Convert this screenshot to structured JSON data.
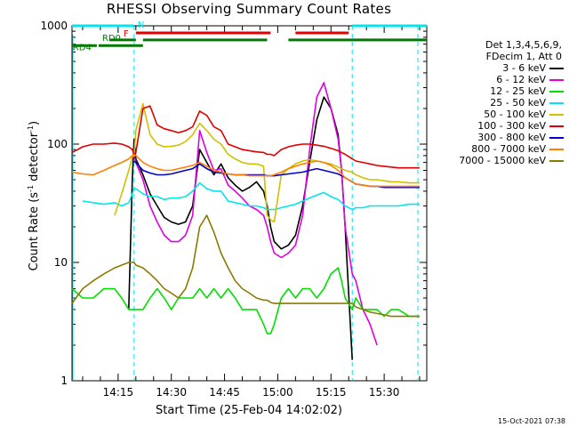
{
  "chart_data": {
    "type": "line",
    "title": "RHESSI Observing Summary Count Rates",
    "xlabel": "Start Time (25-Feb-04 14:02:02)",
    "ylabel_main": "Count Rate (s",
    "ylabel_sup": "-1",
    "ylabel_mid": " detector",
    "ylabel_sup2": "-1",
    "ylabel_end": ")",
    "yscale": "log",
    "ylim": [
      1,
      1000
    ],
    "xlim_minutes": [
      0,
      100
    ],
    "x_ticks": [
      {
        "label": "14:15",
        "minute": 13
      },
      {
        "label": "14:30",
        "minute": 28
      },
      {
        "label": "14:45",
        "minute": 43
      },
      {
        "label": "15:00",
        "minute": 58
      },
      {
        "label": "15:15",
        "minute": 73
      },
      {
        "label": "15:30",
        "minute": 88
      }
    ],
    "y_ticks": [
      {
        "label": "1",
        "value": 1
      },
      {
        "label": "10",
        "value": 10
      },
      {
        "label": "100",
        "value": 100
      },
      {
        "label": "1000",
        "value": 1000
      }
    ],
    "legend_header": [
      "Det 1,3,4,5,6,9,",
      "FDecim 1, Att 0"
    ],
    "timestamp": "15-Oct-2021 07:38",
    "flag_labels": {
      "night": "N",
      "flare": "F",
      "rd0": "RD0",
      "rd4": "RD4"
    },
    "vertical_markers_minutes": [
      17.5,
      79.0,
      97.5
    ],
    "flag_bars": [
      {
        "name": "night",
        "color": "#00e5ee",
        "y": 1000,
        "segments": [
          [
            0,
            17.5
          ],
          [
            79,
            100
          ]
        ]
      },
      {
        "name": "flare",
        "color": "#e00000",
        "y": 870,
        "segments": [
          [
            18,
            56
          ],
          [
            63,
            78
          ]
        ]
      },
      {
        "name": "rd0",
        "color": "#007a00",
        "y": 760,
        "segments": [
          [
            10.5,
            18
          ],
          [
            20,
            55
          ],
          [
            61,
            100
          ]
        ]
      },
      {
        "name": "rd4",
        "color": "#007a00",
        "y": 680,
        "segments": [
          [
            0,
            7
          ],
          [
            7.5,
            20
          ]
        ]
      }
    ],
    "x": [
      0,
      3,
      6,
      9,
      12,
      14,
      16,
      17,
      17.5,
      18,
      20,
      22,
      24,
      26,
      28,
      30,
      32,
      34,
      36,
      38,
      40,
      42,
      44,
      46,
      48,
      50,
      52,
      54,
      55,
      56,
      57,
      59,
      61,
      63,
      65,
      67,
      69,
      71,
      73,
      75,
      76,
      77,
      79,
      80,
      82,
      84,
      86,
      88,
      90,
      92,
      95,
      98
    ],
    "series": [
      {
        "name": "3 - 6 keV",
        "color": "#000000",
        "values": [
          null,
          null,
          null,
          null,
          null,
          null,
          4,
          50,
          110,
          75,
          55,
          38,
          30,
          24,
          22,
          21,
          22,
          30,
          90,
          70,
          55,
          68,
          52,
          45,
          40,
          43,
          48,
          40,
          30,
          20,
          15,
          13,
          14,
          17,
          30,
          70,
          160,
          250,
          200,
          120,
          60,
          20,
          1.5,
          null,
          null,
          null,
          null,
          null,
          null,
          null,
          null,
          null
        ]
      },
      {
        "name": "6 - 12 keV",
        "color": "#e000e0",
        "values": [
          null,
          null,
          null,
          null,
          null,
          null,
          null,
          null,
          80,
          70,
          50,
          30,
          22,
          17,
          15,
          15,
          17,
          25,
          130,
          85,
          60,
          62,
          45,
          40,
          35,
          30,
          28,
          25,
          20,
          15,
          12,
          11,
          12,
          14,
          25,
          90,
          250,
          330,
          200,
          110,
          60,
          20,
          8,
          7,
          4,
          3,
          2,
          null,
          null,
          null,
          null,
          null
        ]
      },
      {
        "name": "12 - 25 keV",
        "color": "#00e000",
        "values": [
          6,
          5,
          5,
          6,
          6,
          5,
          4,
          4,
          4,
          4,
          4,
          5,
          6,
          5,
          4,
          5,
          5,
          5,
          6,
          5,
          6,
          5,
          6,
          5,
          4,
          4,
          4,
          3,
          2.5,
          2.5,
          3,
          5,
          6,
          5,
          6,
          6,
          5,
          6,
          8,
          9,
          7,
          5,
          4,
          5,
          4,
          4,
          4,
          3.5,
          4,
          4,
          3.5,
          3.5
        ]
      },
      {
        "name": "25 - 50 keV",
        "color": "#00e5ee",
        "values": [
          null,
          33,
          32,
          31,
          32,
          30,
          32,
          38,
          42,
          42,
          38,
          36,
          36,
          34,
          35,
          35,
          36,
          40,
          47,
          42,
          40,
          40,
          33,
          32,
          31,
          30,
          30,
          29,
          28,
          28,
          28,
          29,
          30,
          31,
          33,
          35,
          37,
          39,
          36,
          34,
          32,
          30,
          28,
          29,
          29,
          30,
          30,
          30,
          30,
          30,
          31,
          31
        ]
      },
      {
        "name": "50 - 100 keV",
        "color": "#d0c000",
        "values": [
          null,
          null,
          null,
          null,
          25,
          38,
          60,
          78,
          80,
          130,
          220,
          120,
          100,
          95,
          96,
          98,
          105,
          120,
          150,
          130,
          110,
          100,
          82,
          75,
          70,
          68,
          68,
          65,
          25,
          23,
          22,
          55,
          62,
          68,
          72,
          74,
          72,
          70,
          68,
          64,
          62,
          60,
          58,
          55,
          52,
          50,
          50,
          49,
          48,
          48,
          47,
          47
        ]
      },
      {
        "name": "100 - 300 keV",
        "color": "#e00000",
        "values": [
          85,
          95,
          100,
          100,
          102,
          100,
          95,
          90,
          82,
          85,
          200,
          210,
          145,
          135,
          130,
          125,
          130,
          140,
          190,
          175,
          140,
          130,
          100,
          95,
          90,
          88,
          86,
          85,
          82,
          82,
          80,
          90,
          95,
          98,
          100,
          100,
          98,
          96,
          92,
          88,
          85,
          82,
          75,
          72,
          70,
          68,
          66,
          65,
          64,
          63,
          63,
          63
        ]
      },
      {
        "name": "300 - 800 keV",
        "color": "#0000cc",
        "values": [
          null,
          null,
          null,
          null,
          null,
          null,
          null,
          null,
          72,
          70,
          60,
          57,
          55,
          55,
          56,
          58,
          60,
          62,
          68,
          62,
          58,
          57,
          56,
          55,
          55,
          55,
          55,
          55,
          54,
          54,
          54,
          55,
          56,
          57,
          58,
          60,
          62,
          60,
          58,
          56,
          54,
          52,
          48,
          46,
          45,
          44,
          44,
          43,
          43,
          43,
          43,
          43
        ]
      },
      {
        "name": "800 - 7000 keV",
        "color": "#ff8000",
        "values": [
          58,
          56,
          55,
          60,
          66,
          70,
          75,
          80,
          82,
          80,
          70,
          65,
          62,
          60,
          60,
          62,
          64,
          66,
          70,
          65,
          60,
          58,
          56,
          55,
          55,
          54,
          54,
          54,
          54,
          54,
          55,
          58,
          62,
          65,
          68,
          70,
          72,
          70,
          66,
          60,
          56,
          52,
          48,
          46,
          45,
          44,
          44,
          44,
          44,
          44,
          44,
          44
        ]
      },
      {
        "name": "7000 - 15000 keV",
        "color": "#8b7a00",
        "values": [
          4.5,
          6,
          7,
          8,
          9,
          9.5,
          10,
          10,
          10,
          9.5,
          9,
          8,
          7,
          6,
          5.5,
          5,
          6,
          9,
          20,
          25,
          18,
          12,
          9,
          7,
          6,
          5.5,
          5,
          4.8,
          4.8,
          4.6,
          4.5,
          4.5,
          4.5,
          4.5,
          4.5,
          4.5,
          4.5,
          4.5,
          4.5,
          4.5,
          4.5,
          4.5,
          4.5,
          4.2,
          4,
          3.8,
          3.7,
          3.6,
          3.5,
          3.5,
          3.5,
          3.5
        ]
      }
    ]
  }
}
